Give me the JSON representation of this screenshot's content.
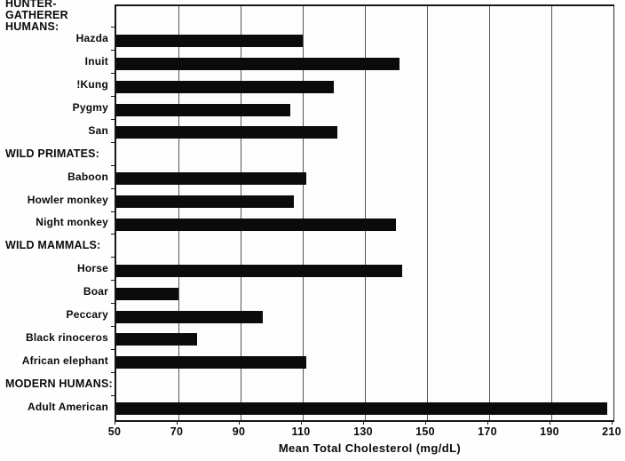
{
  "chart_data": {
    "type": "bar",
    "orientation": "horizontal",
    "title": "",
    "xlabel": "Mean Total Cholesterol (mg/dL)",
    "ylabel": "",
    "xlim": [
      50,
      210
    ],
    "x_ticks": [
      50,
      70,
      90,
      110,
      130,
      150,
      170,
      190,
      210
    ],
    "grid": true,
    "legend": false,
    "bar_color": "#0b0b0b",
    "grid_color": "#565656",
    "groups": [
      {
        "label": "HUNTER-GATHERER HUMANS:",
        "items": [
          {
            "label": "Hazda",
            "value": 110
          },
          {
            "label": "Inuit",
            "value": 141
          },
          {
            "label": "!Kung",
            "value": 120
          },
          {
            "label": "Pygmy",
            "value": 106
          },
          {
            "label": "San",
            "value": 121
          }
        ]
      },
      {
        "label": "WILD PRIMATES:",
        "items": [
          {
            "label": "Baboon",
            "value": 111
          },
          {
            "label": "Howler monkey",
            "value": 107
          },
          {
            "label": "Night monkey",
            "value": 140
          }
        ]
      },
      {
        "label": "WILD MAMMALS:",
        "items": [
          {
            "label": "Horse",
            "value": 142
          },
          {
            "label": "Boar",
            "value": 70
          },
          {
            "label": "Peccary",
            "value": 97
          },
          {
            "label": "Black rinoceros",
            "value": 76
          },
          {
            "label": "African elephant",
            "value": 111
          }
        ]
      },
      {
        "label": "MODERN HUMANS:",
        "items": [
          {
            "label": "Adult American",
            "value": 208
          }
        ]
      }
    ]
  }
}
